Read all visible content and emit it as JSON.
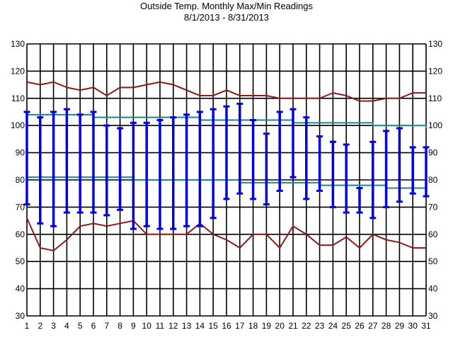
{
  "chart_data": {
    "type": "line",
    "title": "Outside Temp. Monthly Max/Min Readings",
    "subtitle": "8/1/2013 - 8/31/2013",
    "ylim": [
      30,
      130
    ],
    "yticks": [
      30,
      40,
      50,
      60,
      70,
      80,
      90,
      100,
      110,
      120,
      130
    ],
    "x": [
      1,
      2,
      3,
      4,
      5,
      6,
      7,
      8,
      9,
      10,
      11,
      12,
      13,
      14,
      15,
      16,
      17,
      18,
      19,
      20,
      21,
      22,
      23,
      24,
      25,
      26,
      27,
      28,
      29,
      30,
      31
    ],
    "grid": true,
    "series": [
      {
        "color": "#8b1a1a",
        "style": "line",
        "values": [
          116,
          115,
          116,
          114,
          113,
          114,
          111,
          114,
          114,
          115,
          116,
          115,
          113,
          111,
          111,
          113,
          111,
          111,
          111,
          110,
          110,
          110,
          110,
          112,
          111,
          109,
          109,
          110,
          110,
          112,
          112
        ]
      },
      {
        "color": "#8b1a1a",
        "style": "line",
        "values": [
          66,
          55,
          54,
          58,
          63,
          64,
          63,
          64,
          65,
          60,
          60,
          60,
          60,
          64,
          60,
          58,
          55,
          60,
          60,
          55,
          63,
          60,
          56,
          56,
          59,
          55,
          60,
          58,
          57,
          55,
          55
        ]
      },
      {
        "color": "#1a8a8a",
        "style": "step",
        "values": [
          104,
          104,
          104,
          104,
          104,
          103,
          103,
          103,
          103,
          103,
          103,
          103,
          103,
          102,
          102,
          102,
          102,
          102,
          102,
          102,
          101,
          101,
          101,
          101,
          101,
          101,
          100,
          100,
          100,
          100,
          99
        ]
      },
      {
        "color": "#1a8a8a",
        "style": "step",
        "values": [
          81,
          81,
          81,
          81,
          81,
          81,
          81,
          81,
          80,
          80,
          80,
          80,
          80,
          80,
          80,
          80,
          79,
          79,
          79,
          79,
          79,
          79,
          78,
          78,
          78,
          78,
          78,
          77,
          77,
          77,
          77
        ]
      }
    ],
    "ranges": {
      "color": "#0000e0",
      "max": [
        105,
        103,
        105,
        106,
        104,
        105,
        100,
        99,
        101,
        101,
        102,
        103,
        104,
        105,
        106,
        107,
        108,
        102,
        97,
        105,
        106,
        103,
        96,
        94,
        93,
        77,
        94,
        98,
        99,
        92,
        92
      ],
      "min": [
        71,
        64,
        63,
        68,
        68,
        68,
        67,
        69,
        62,
        63,
        62,
        62,
        63,
        63,
        66,
        73,
        75,
        73,
        71,
        76,
        81,
        73,
        76,
        70,
        68,
        68,
        66,
        70,
        72,
        75,
        74
      ]
    }
  }
}
